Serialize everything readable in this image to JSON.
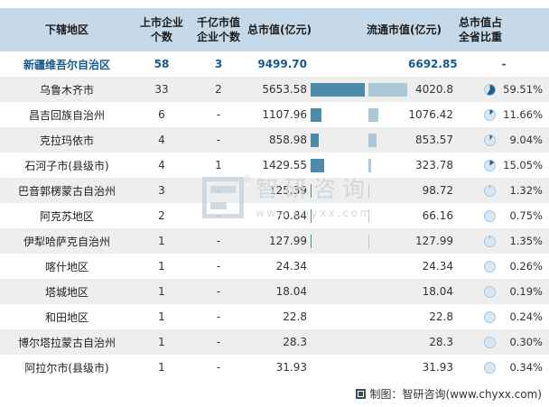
{
  "table": {
    "columns": [
      "下辖地区",
      "上市企业\n个数",
      "千亿市值\n企业个数",
      "总市值(亿元)",
      "流通市值(亿元)",
      "总市值占\n全省比重"
    ]
  },
  "province": {
    "region": "新疆维吾尔自治区",
    "listed": "58",
    "hundred_billion": "3",
    "total_label": "9499.70",
    "circulating_label": "6692.85",
    "share_label": "-"
  },
  "rows": [
    {
      "region": "乌鲁木齐市",
      "listed": "33",
      "hundred_billion": "2",
      "total_label": "5653.58",
      "total": 5653.58,
      "circulating_label": "4020.8",
      "circulating": 4020.8,
      "share_label": "59.51%"
    },
    {
      "region": "昌吉回族自治州",
      "listed": "6",
      "hundred_billion": "-",
      "total_label": "1107.96",
      "total": 1107.96,
      "circulating_label": "1076.42",
      "circulating": 1076.42,
      "share_label": "11.66%"
    },
    {
      "region": "克拉玛依市",
      "listed": "4",
      "hundred_billion": "-",
      "total_label": "858.98",
      "total": 858.98,
      "circulating_label": "853.57",
      "circulating": 853.57,
      "share_label": "9.04%"
    },
    {
      "region": "石河子市(县级市)",
      "listed": "4",
      "hundred_billion": "1",
      "total_label": "1429.55",
      "total": 1429.55,
      "circulating_label": "323.78",
      "circulating": 323.78,
      "share_label": "15.05%"
    },
    {
      "region": "巴音郭楞蒙古自治州",
      "listed": "3",
      "hundred_billion": "-",
      "total_label": "125.39",
      "total": 125.39,
      "circulating_label": "98.72",
      "circulating": 98.72,
      "share_label": "1.32%"
    },
    {
      "region": "阿克苏地区",
      "listed": "2",
      "hundred_billion": "-",
      "total_label": "70.84",
      "total": 70.84,
      "circulating_label": "66.16",
      "circulating": 66.16,
      "share_label": "0.75%"
    },
    {
      "region": "伊犁哈萨克自治州",
      "listed": "1",
      "hundred_billion": "-",
      "total_label": "127.99",
      "total": 127.99,
      "circulating_label": "127.99",
      "circulating": 127.99,
      "share_label": "1.35%"
    },
    {
      "region": "喀什地区",
      "listed": "1",
      "hundred_billion": "-",
      "total_label": "24.34",
      "total": 24.34,
      "circulating_label": "24.34",
      "circulating": 24.34,
      "share_label": "0.26%"
    },
    {
      "region": "塔城地区",
      "listed": "1",
      "hundred_billion": "-",
      "total_label": "18.04",
      "total": 18.04,
      "circulating_label": "18.04",
      "circulating": 18.04,
      "share_label": "0.19%"
    },
    {
      "region": "和田地区",
      "listed": "1",
      "hundred_billion": "-",
      "total_label": "22.8",
      "total": 22.8,
      "circulating_label": "22.8",
      "circulating": 22.8,
      "share_label": "0.24%"
    },
    {
      "region": "博尔塔拉蒙古自治州",
      "listed": "1",
      "hundred_billion": "-",
      "total_label": "28.3",
      "total": 28.3,
      "circulating_label": "28.3",
      "circulating": 28.3,
      "share_label": "0.30%"
    },
    {
      "region": "阿拉尔市(县级市)",
      "listed": "1",
      "hundred_billion": "-",
      "total_label": "31.93",
      "total": 31.93,
      "circulating_label": "31.93",
      "circulating": 31.93,
      "share_label": "0.34%"
    }
  ],
  "watermark": {
    "brand": "智研咨询",
    "url": "www.chyxx.com",
    "reg": "®"
  },
  "footer": {
    "credit": "制图：智研咨询(www.chyxx.com)"
  },
  "colors": {
    "header_bg": "#c5d9e9",
    "row_alt_bg": "#eeeeee",
    "province_text": "#16598f",
    "bar_dark": "#4c8caa",
    "bar_light": "#abc9d9",
    "pie_fill": "#1e5c90",
    "pie_bg": "#d8e7f3",
    "pie_ring": "#aac9dd",
    "watermark": "#cdd5db",
    "footer_icon": "#3e4e58"
  },
  "chart_data": {
    "type": "table",
    "title": "",
    "columns": [
      "下辖地区",
      "上市企业个数",
      "千亿市值企业个数",
      "总市值(亿元)",
      "流通市值(亿元)",
      "总市值占全省比重(%)"
    ],
    "rows": [
      [
        "新疆维吾尔自治区",
        58,
        3,
        9499.7,
        6692.85,
        null
      ],
      [
        "乌鲁木齐市",
        33,
        2,
        5653.58,
        4020.8,
        59.51
      ],
      [
        "昌吉回族自治州",
        6,
        null,
        1107.96,
        1076.42,
        11.66
      ],
      [
        "克拉玛依市",
        4,
        null,
        858.98,
        853.57,
        9.04
      ],
      [
        "石河子市(县级市)",
        4,
        1,
        1429.55,
        323.78,
        15.05
      ],
      [
        "巴音郭楞蒙古自治州",
        3,
        null,
        125.39,
        98.72,
        1.32
      ],
      [
        "阿克苏地区",
        2,
        null,
        70.84,
        66.16,
        0.75
      ],
      [
        "伊犁哈萨克自治州",
        1,
        null,
        127.99,
        127.99,
        1.35
      ],
      [
        "喀什地区",
        1,
        null,
        24.34,
        24.34,
        0.26
      ],
      [
        "塔城地区",
        1,
        null,
        18.04,
        18.04,
        0.19
      ],
      [
        "和田地区",
        1,
        null,
        22.8,
        22.8,
        0.24
      ],
      [
        "博尔塔拉蒙古自治州",
        1,
        null,
        28.3,
        28.3,
        0.3
      ],
      [
        "阿拉尔市(县级市)",
        1,
        null,
        31.93,
        31.93,
        0.34
      ]
    ],
    "notes": "总市值 and 流通市值 are also shown as horizontal bars (shared scale); 总市值占全省比重 shown as small pie icons."
  }
}
